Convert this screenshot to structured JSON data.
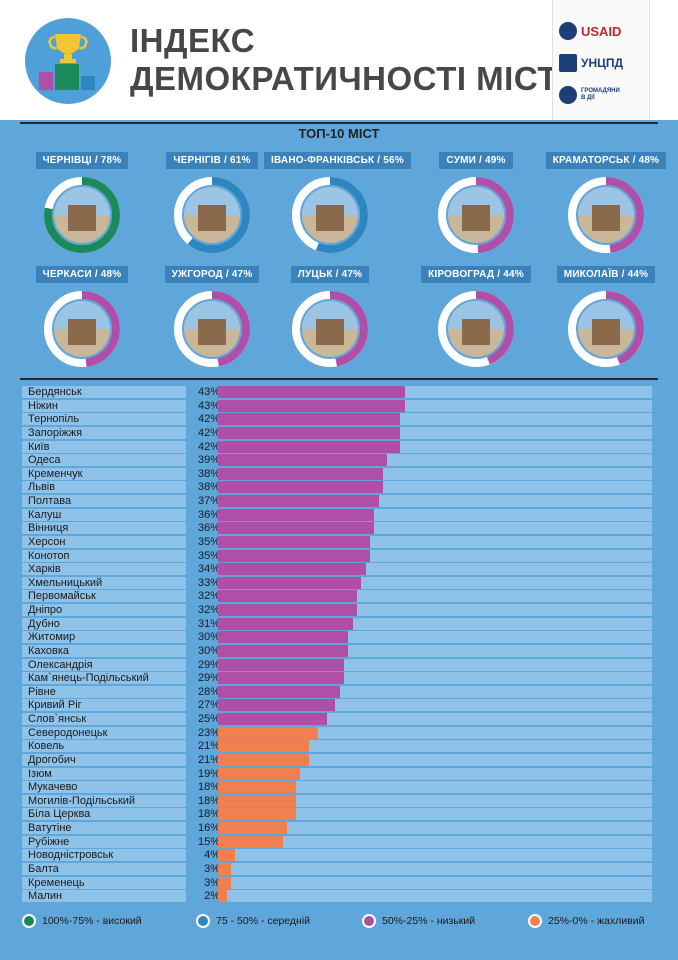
{
  "header": {
    "title_line1": "ІНДЕКС",
    "title_line2": "ДЕМОКРАТИЧНОСТІ МІСТ",
    "logos": [
      "USAID",
      "УНЦПД",
      "ГРОМАДЯНИ В ДІЇ"
    ]
  },
  "top10": {
    "title": "ТОП-10 МІСТ",
    "cities": [
      {
        "label": "ЧЕРНІВЦІ / 78%",
        "value": 78,
        "color": "#1a8a5a"
      },
      {
        "label": "ЧЕРНІГІВ / 61%",
        "value": 61,
        "color": "#2e86c1"
      },
      {
        "label": "ІВАНО-ФРАНКІВСЬК / 56%",
        "value": 56,
        "color": "#2e86c1"
      },
      {
        "label": "СУМИ / 49%",
        "value": 49,
        "color": "#b04fa8"
      },
      {
        "label": "КРАМАТОРСЬК / 48%",
        "value": 48,
        "color": "#b04fa8"
      },
      {
        "label": "ЧЕРКАСИ / 48%",
        "value": 48,
        "color": "#b04fa8"
      },
      {
        "label": "УЖГОРОД / 47%",
        "value": 47,
        "color": "#b04fa8"
      },
      {
        "label": "ЛУЦЬК / 47%",
        "value": 47,
        "color": "#b04fa8"
      },
      {
        "label": "КІРОВОГРАД / 44%",
        "value": 44,
        "color": "#b04fa8"
      },
      {
        "label": "МИКОЛАЇВ / 44%",
        "value": 44,
        "color": "#b04fa8"
      }
    ]
  },
  "colors": {
    "high": "#1a8a5a",
    "medium": "#2e86c1",
    "low": "#b04fa8",
    "poor": "#f08050"
  },
  "chart_data": {
    "type": "bar",
    "categories": [
      "Бердянськ",
      "Ніжин",
      "Тернопіль",
      "Запоріжжя",
      "Київ",
      "Одеса",
      "Кременчук",
      "Львів",
      "Полтава",
      "Калуш",
      "Вінниця",
      "Херсон",
      "Конотоп",
      "Харків",
      "Хмельницький",
      "Первомайськ",
      "Дніпро",
      "Дубно",
      "Житомир",
      "Каховка",
      "Олександрія",
      "Кам`янець-Подільський",
      "Рівне",
      "Кривий Ріг",
      "Слов`янськ",
      "Северодонецьк",
      "Ковель",
      "Дрогобич",
      "Ізюм",
      "Мукачево",
      "Могилів-Подільський",
      "Біла Церква",
      "Ватутіне",
      "Рубіжне",
      "Новодністровськ",
      "Балта",
      "Кременець",
      "Малин"
    ],
    "values": [
      43,
      43,
      42,
      42,
      42,
      39,
      38,
      38,
      37,
      36,
      36,
      35,
      35,
      34,
      33,
      32,
      32,
      31,
      30,
      30,
      29,
      29,
      28,
      27,
      25,
      23,
      21,
      21,
      19,
      18,
      18,
      18,
      16,
      15,
      4,
      3,
      3,
      2
    ],
    "value_labels": [
      "43%",
      "43%",
      "42%",
      "42%",
      "42%",
      "39%",
      "38%",
      "38%",
      "37%",
      "36%",
      "36%",
      "35%",
      "35%",
      "34%",
      "33%",
      "32%",
      "32%",
      "31%",
      "30%",
      "30%",
      "29%",
      "29%",
      "28%",
      "27%",
      "25%",
      "23%",
      "21%",
      "21%",
      "19%",
      "18%",
      "18%",
      "18%",
      "16%",
      "15%",
      "4%",
      "3%",
      "3%",
      "2%"
    ],
    "xlim": [
      0,
      100
    ]
  },
  "legend": [
    {
      "label": "100%-75% - високий",
      "color": "#1a8a5a"
    },
    {
      "label": "75 - 50% - середній",
      "color": "#2e86c1"
    },
    {
      "label": "50%-25% - низький",
      "color": "#b04fa8"
    },
    {
      "label": "25%-0% - жахливий",
      "color": "#f08050"
    }
  ]
}
